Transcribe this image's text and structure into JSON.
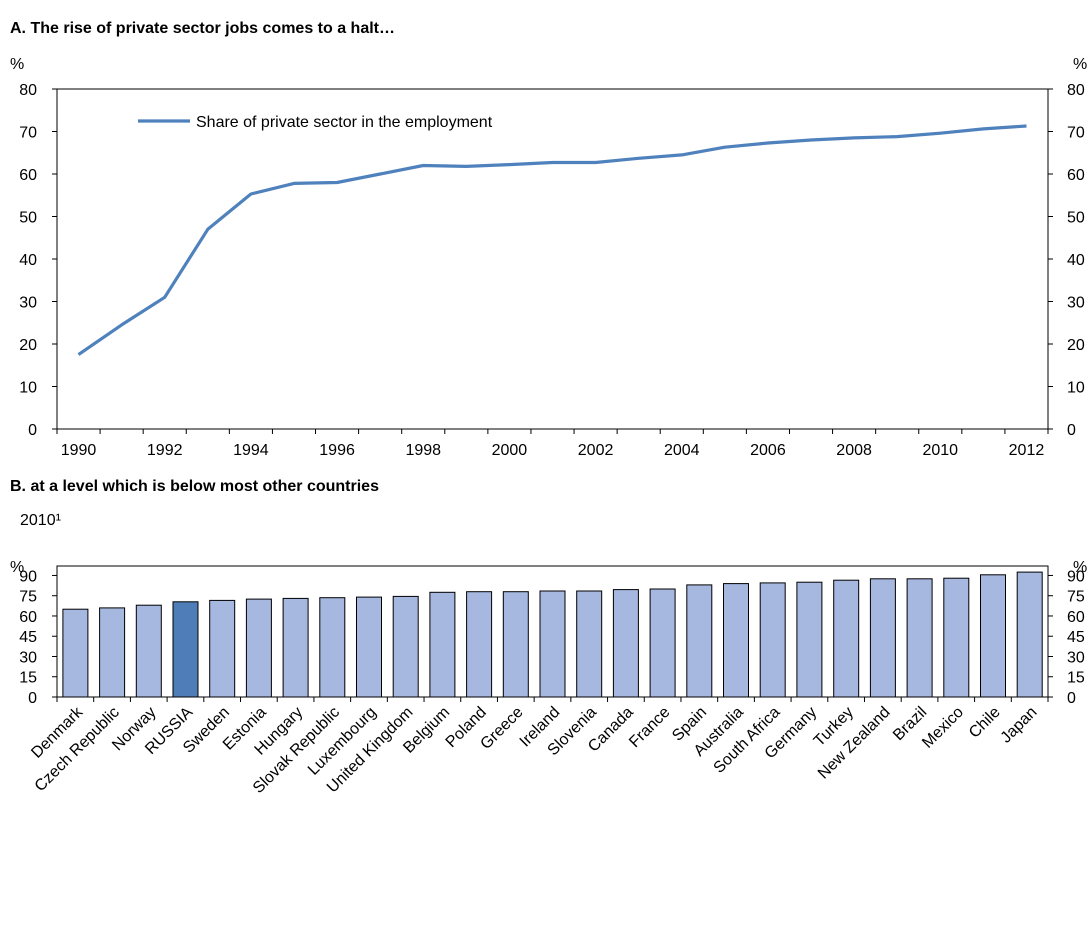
{
  "panel_a": {
    "title": "A. The rise of private sector jobs comes to a halt…"
  },
  "panel_b": {
    "title": "B. at a level which is below most other countries",
    "subtitle": "2010¹"
  },
  "colors": {
    "line": "#4F81BD",
    "bar": "#A6B7E0",
    "bar_highlight": "#4F7DB8",
    "axis": "#000000"
  },
  "chart_data": [
    {
      "type": "line",
      "title": "A. The rise of private sector jobs comes to a halt…",
      "y_unit_left": "%",
      "y_unit_right": "%",
      "ylim": [
        0,
        80
      ],
      "yticks": [
        0,
        10,
        20,
        30,
        40,
        50,
        60,
        70,
        80
      ],
      "xlim": [
        1990,
        2012
      ],
      "xticks": [
        1990,
        1992,
        1994,
        1996,
        1998,
        2000,
        2002,
        2004,
        2006,
        2008,
        2010,
        2012
      ],
      "legend_placement": "top-left",
      "grid": false,
      "series": [
        {
          "name": "Share of private sector in the employment",
          "x": [
            1990,
            1991,
            1992,
            1993,
            1994,
            1995,
            1996,
            1997,
            1998,
            1999,
            2000,
            2001,
            2002,
            2003,
            2004,
            2005,
            2006,
            2007,
            2008,
            2009,
            2010,
            2011,
            2012
          ],
          "values": [
            17.5,
            24.5,
            31,
            47,
            55.3,
            57.8,
            58,
            60,
            62,
            61.8,
            62.2,
            62.7,
            62.7,
            63.7,
            64.5,
            66.3,
            67.3,
            68,
            68.5,
            68.8,
            69.6,
            70.6,
            71.3
          ]
        }
      ]
    },
    {
      "type": "bar",
      "title": "B. at a level which is below most other countries",
      "subtitle": "2010¹",
      "y_unit_left": "%",
      "y_unit_right": "%",
      "ylim": [
        0,
        97
      ],
      "yticks": [
        0,
        15,
        30,
        45,
        60,
        75,
        90
      ],
      "grid": false,
      "highlight": "RUSSIA",
      "categories": [
        "Denmark",
        "Czech Republic",
        "Norway",
        "RUSSIA",
        "Sweden",
        "Estonia",
        "Hungary",
        "Slovak Republic",
        "Luxembourg",
        "United Kingdom",
        "Belgium",
        "Poland",
        "Greece",
        "Ireland",
        "Slovenia",
        "Canada",
        "France",
        "Spain",
        "Australia",
        "South Africa",
        "Germany",
        "Turkey",
        "New Zealand",
        "Brazil",
        "Mexico",
        "Chile",
        "Japan"
      ],
      "values": [
        65,
        66,
        68,
        70.5,
        71.5,
        72.5,
        73,
        73.5,
        74,
        74.5,
        77.5,
        78,
        78,
        78.5,
        78.5,
        79.5,
        80,
        83,
        84,
        84.5,
        85,
        86.5,
        87.5,
        87.5,
        88,
        90.5,
        92.5
      ]
    }
  ]
}
